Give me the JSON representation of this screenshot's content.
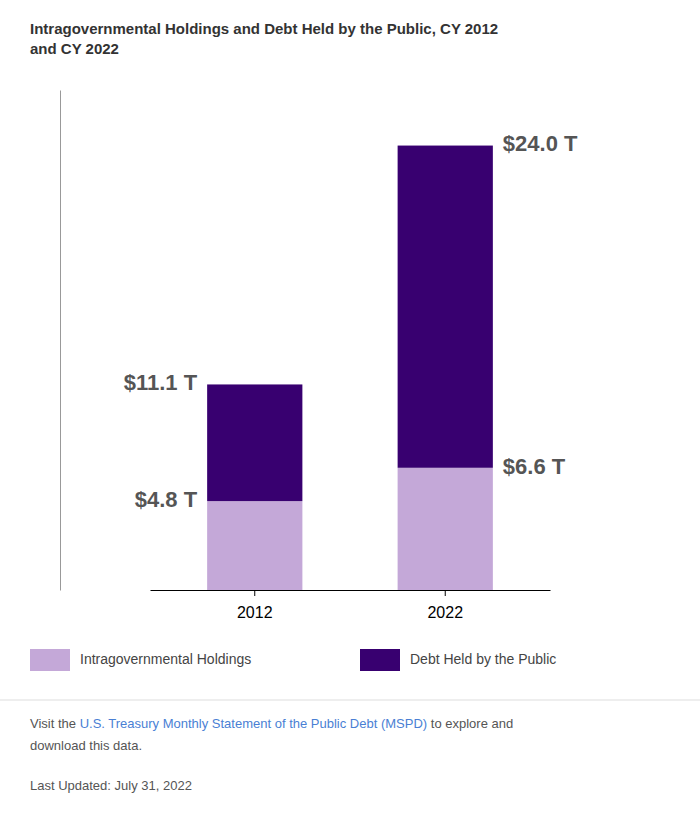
{
  "chart_data": {
    "type": "bar",
    "title": "Intragovernmental Holdings and Debt Held by the Public, CY 2012\nand CY 2022",
    "categories": [
      "2012",
      "2022"
    ],
    "series": [
      {
        "name": "Intragovernmental Holdings",
        "color": "#c4a8d8",
        "values": [
          4.8,
          6.6
        ]
      },
      {
        "name": "Debt Held by the Public",
        "color": "#380070",
        "values": [
          6.3,
          17.4
        ]
      }
    ],
    "stacked": true,
    "ylim": [
      0,
      27
    ],
    "tick_labels": "x",
    "grid": false,
    "legend": "bottom",
    "annotations": [
      {
        "text": "$4.8 T",
        "category": "2012",
        "value": 4.8
      },
      {
        "text": "$11.1 T",
        "category": "2012",
        "value": 11.1
      },
      {
        "text": "$6.6 T",
        "category": "2022",
        "value": 6.6
      },
      {
        "text": "$24.0 T",
        "category": "2022",
        "value": 24.0
      }
    ],
    "footer": [
      [
        {
          "text": "Visit the "
        },
        {
          "text": "U.S. Treasury Monthly Statement of the Public Debt (MSPD)",
          "color": "#4a7fd4"
        },
        {
          "text": " to explore and"
        }
      ],
      [
        {
          "text": "download this data."
        }
      ],
      [
        {
          "text": "Last Updated: July 31, 2022"
        }
      ]
    ]
  }
}
